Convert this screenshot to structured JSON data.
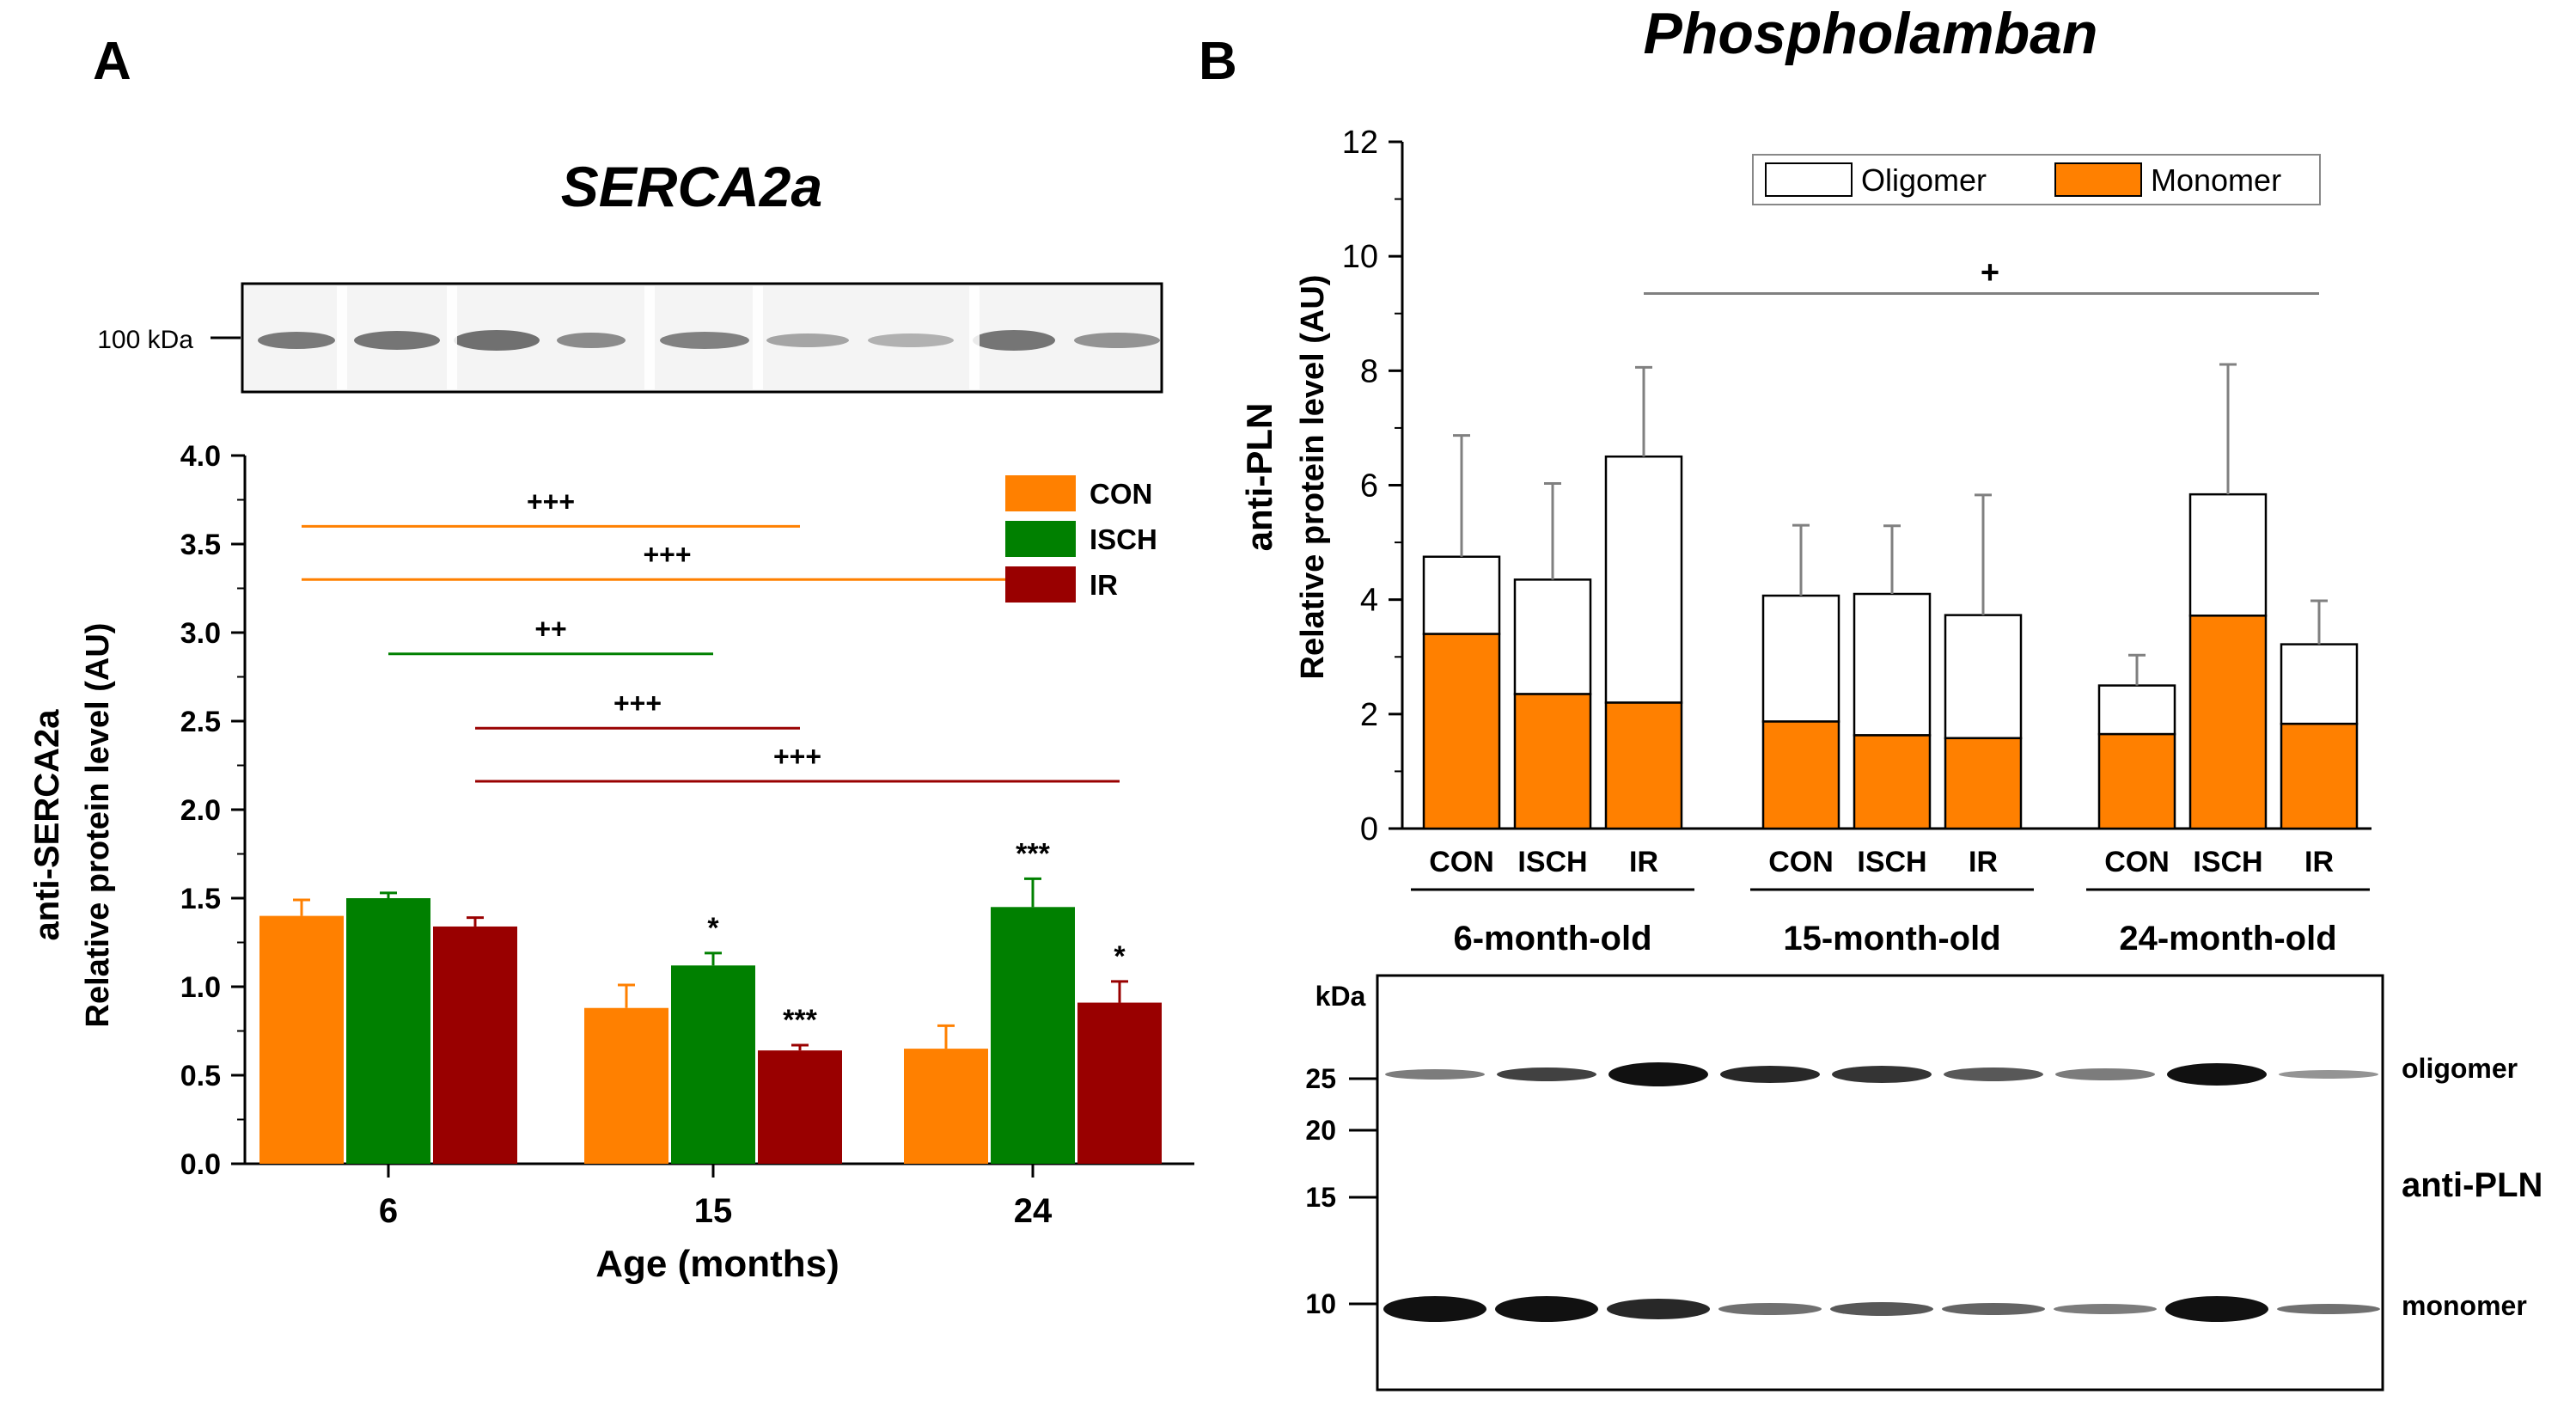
{
  "colors": {
    "con": "#ff8000",
    "isch": "#008000",
    "ir": "#990000",
    "oligomer_fill": "#ffffff",
    "monomer_fill": "#ff8000",
    "axis": "#000000",
    "bracket_gray": "#808080",
    "blot_band": "#111111"
  },
  "panelA": {
    "label": "A",
    "title": "SERCA2a",
    "blot_marker": "100 kDa"
  },
  "panelB": {
    "label": "B",
    "title": "Phospholamban",
    "blot_kda_header": "kDa",
    "blot_markers": [
      "25",
      "20",
      "15",
      "10"
    ],
    "blot_right_labels": [
      "oligomer",
      "anti-PLN",
      "monomer"
    ]
  },
  "chart_data": [
    {
      "type": "bar",
      "title": "SERCA2a",
      "xlabel": "Age (months)",
      "ylabel_line1": "anti-SERCA2a",
      "ylabel_line2": "Relative protein level (AU)",
      "ylim": [
        0,
        4.0
      ],
      "yticks": [
        "0.0",
        "0.5",
        "1.0",
        "1.5",
        "2.0",
        "2.5",
        "3.0",
        "3.5",
        "4.0"
      ],
      "categories": [
        "6",
        "15",
        "24"
      ],
      "series": [
        {
          "name": "CON",
          "values": [
            1.4,
            0.88,
            0.65
          ],
          "errors": [
            0.09,
            0.13,
            0.13
          ],
          "sig": [
            "",
            "",
            ""
          ]
        },
        {
          "name": "ISCH",
          "values": [
            1.5,
            1.12,
            1.45
          ],
          "errors": [
            0.03,
            0.07,
            0.16
          ],
          "sig": [
            "",
            "*",
            "***"
          ]
        },
        {
          "name": "IR",
          "values": [
            1.34,
            0.64,
            0.91
          ],
          "errors": [
            0.05,
            0.03,
            0.12
          ],
          "sig": [
            "",
            "***",
            "*"
          ]
        }
      ],
      "legend": [
        "CON",
        "ISCH",
        "IR"
      ],
      "comparisons": [
        {
          "label": "+++",
          "y": 3.6,
          "from": "6-CON",
          "to": "15-IR",
          "color": "con"
        },
        {
          "label": "+++",
          "y": 3.3,
          "from": "6-CON",
          "to": "24-ISCH",
          "color": "con"
        },
        {
          "label": "++",
          "y": 2.88,
          "from": "6-ISCH",
          "to": "15-ISCH",
          "color": "isch"
        },
        {
          "label": "+++",
          "y": 2.46,
          "from": "6-IR",
          "to": "15-IR",
          "color": "ir"
        },
        {
          "label": "+++",
          "y": 2.16,
          "from": "6-IR",
          "to": "24-IR",
          "color": "ir"
        }
      ]
    },
    {
      "type": "bar",
      "stacked": true,
      "title": "Phospholamban",
      "ylabel_line1": "anti-PLN",
      "ylabel_line2": "Relative protein level (AU)",
      "ylim": [
        0,
        12
      ],
      "yticks": [
        "0",
        "2",
        "4",
        "6",
        "8",
        "10",
        "12"
      ],
      "groups": [
        "6-month-old",
        "15-month-old",
        "24-month-old"
      ],
      "categories": [
        "CON",
        "ISCH",
        "IR"
      ],
      "series": [
        {
          "name": "Monomer",
          "values": [
            [
              3.4,
              2.35,
              2.2
            ],
            [
              1.87,
              1.63,
              1.58
            ],
            [
              1.65,
              3.72,
              1.83
            ]
          ]
        },
        {
          "name": "Oligomer",
          "values": [
            [
              1.35,
              2.0,
              4.3
            ],
            [
              2.2,
              2.47,
              2.15
            ],
            [
              0.85,
              2.12,
              1.39
            ]
          ]
        }
      ],
      "totals": [
        [
          4.75,
          4.35,
          6.5
        ],
        [
          4.07,
          4.1,
          3.73
        ],
        [
          2.5,
          5.84,
          3.22
        ]
      ],
      "errors": [
        [
          2.12,
          1.68,
          1.56
        ],
        [
          1.23,
          1.19,
          2.1
        ],
        [
          0.53,
          2.27,
          0.76
        ]
      ],
      "legend": [
        "Oligomer",
        "Monomer"
      ],
      "comparisons": [
        {
          "label": "+",
          "y": 9.35,
          "from": "6-IR",
          "to": "24-IR",
          "color": "bracket_gray"
        }
      ]
    }
  ]
}
